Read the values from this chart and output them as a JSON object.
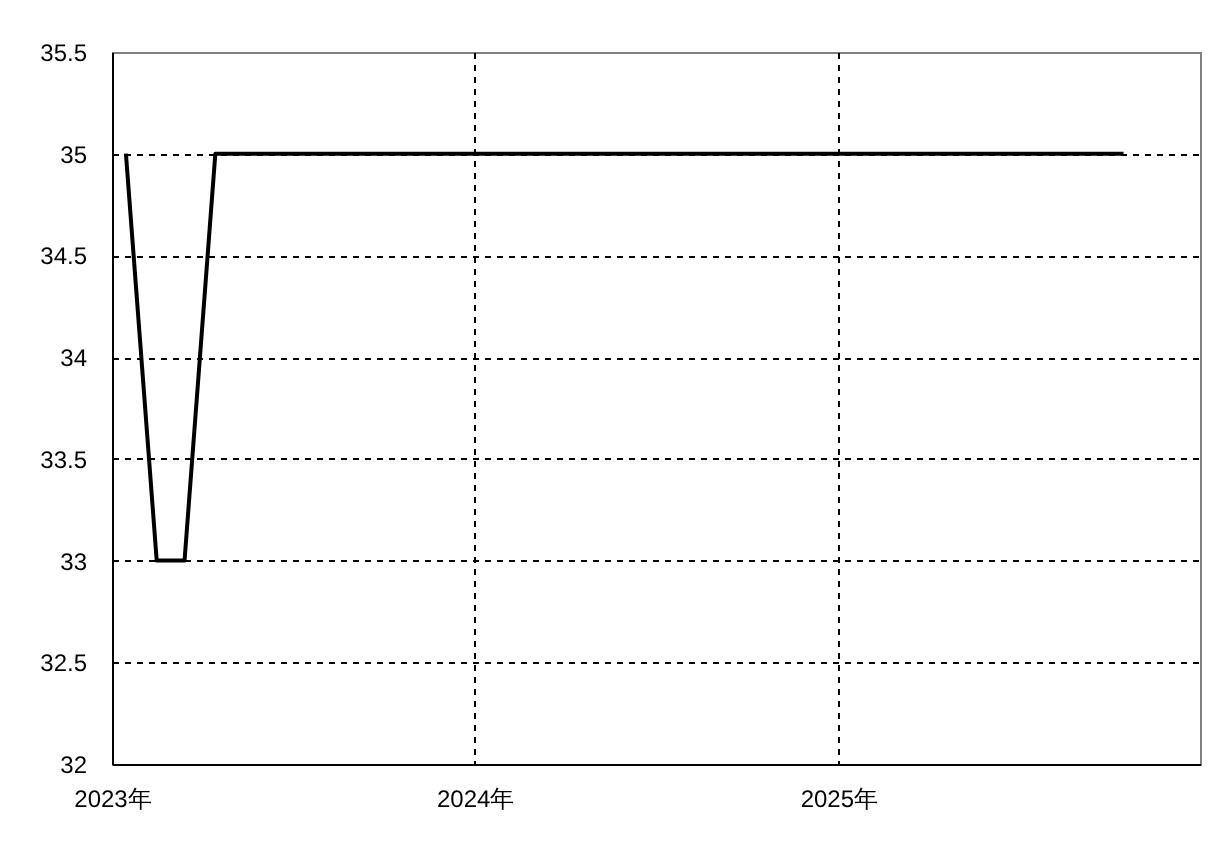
{
  "chart_data": {
    "type": "line",
    "x": [
      "2023-01-15",
      "2023-02-15",
      "2023-03-15",
      "2023-04-15",
      "2023-05-15",
      "2023-06-15",
      "2023-07-15",
      "2023-08-15",
      "2023-09-15",
      "2023-10-15",
      "2023-11-15",
      "2023-12-15",
      "2024-01-15",
      "2024-02-15",
      "2024-03-15",
      "2024-04-15",
      "2024-05-15",
      "2024-06-15",
      "2024-07-15",
      "2024-08-15",
      "2024-09-15",
      "2024-10-15",
      "2024-11-15",
      "2024-12-15",
      "2025-01-15",
      "2025-02-15",
      "2025-03-15",
      "2025-04-15",
      "2025-05-15",
      "2025-06-15",
      "2025-07-15",
      "2025-08-15",
      "2025-09-15",
      "2025-10-15"
    ],
    "series": [
      {
        "color": "#000000",
        "values": [
          35,
          33,
          33,
          35,
          35,
          35,
          35,
          35,
          35,
          35,
          35,
          35,
          35,
          35,
          35,
          35,
          35,
          35,
          35,
          35,
          35,
          35,
          35,
          35,
          35,
          35,
          35,
          35,
          35,
          35,
          35,
          35,
          35,
          35
        ]
      }
    ],
    "xlim": [
      "2023-01-01",
      "2025-12-31"
    ],
    "xticks": [
      {
        "value": "2023",
        "label": "2023年"
      },
      {
        "value": "2024",
        "label": "2024年"
      },
      {
        "value": "2025",
        "label": "2025年"
      }
    ],
    "ylim": [
      32,
      35.5
    ],
    "yticks": [
      32,
      32.5,
      33,
      33.5,
      34,
      34.5,
      35,
      35.5
    ],
    "grid": true,
    "line_style": "solid"
  }
}
